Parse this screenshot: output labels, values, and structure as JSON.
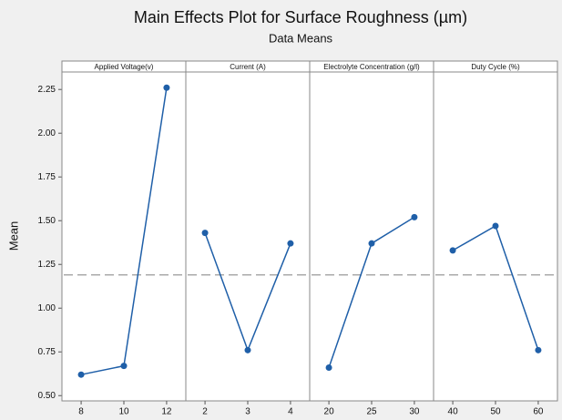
{
  "chart_data": {
    "type": "line",
    "title": "Main Effects Plot for Surface Roughness (µm)",
    "subtitle": "Data Means",
    "ylabel": "Mean",
    "color": "#1f5fa8",
    "mean_line": 1.19,
    "ylim": [
      0.47,
      2.35
    ],
    "yticks": [
      {
        "value": 0.5,
        "label": "0.50"
      },
      {
        "value": 0.75,
        "label": "0.75"
      },
      {
        "value": 1.0,
        "label": "1.00"
      },
      {
        "value": 1.25,
        "label": "1.25"
      },
      {
        "value": 1.5,
        "label": "1.50"
      },
      {
        "value": 1.75,
        "label": "1.75"
      },
      {
        "value": 2.0,
        "label": "2.00"
      },
      {
        "value": 2.25,
        "label": "2.25"
      }
    ],
    "panels": [
      {
        "title": "Applied Voltage(v)",
        "categories": [
          "8",
          "10",
          "12"
        ],
        "values": [
          0.62,
          0.67,
          2.26
        ]
      },
      {
        "title": "Current (A)",
        "categories": [
          "2",
          "3",
          "4"
        ],
        "values": [
          1.43,
          0.76,
          1.37
        ]
      },
      {
        "title": "Electrolyte Concentration (g/l)",
        "categories": [
          "20",
          "25",
          "30"
        ],
        "values": [
          0.66,
          1.37,
          1.52
        ]
      },
      {
        "title": "Duty Cycle (%)",
        "categories": [
          "40",
          "50",
          "60"
        ],
        "values": [
          1.33,
          1.47,
          0.76
        ]
      }
    ]
  }
}
